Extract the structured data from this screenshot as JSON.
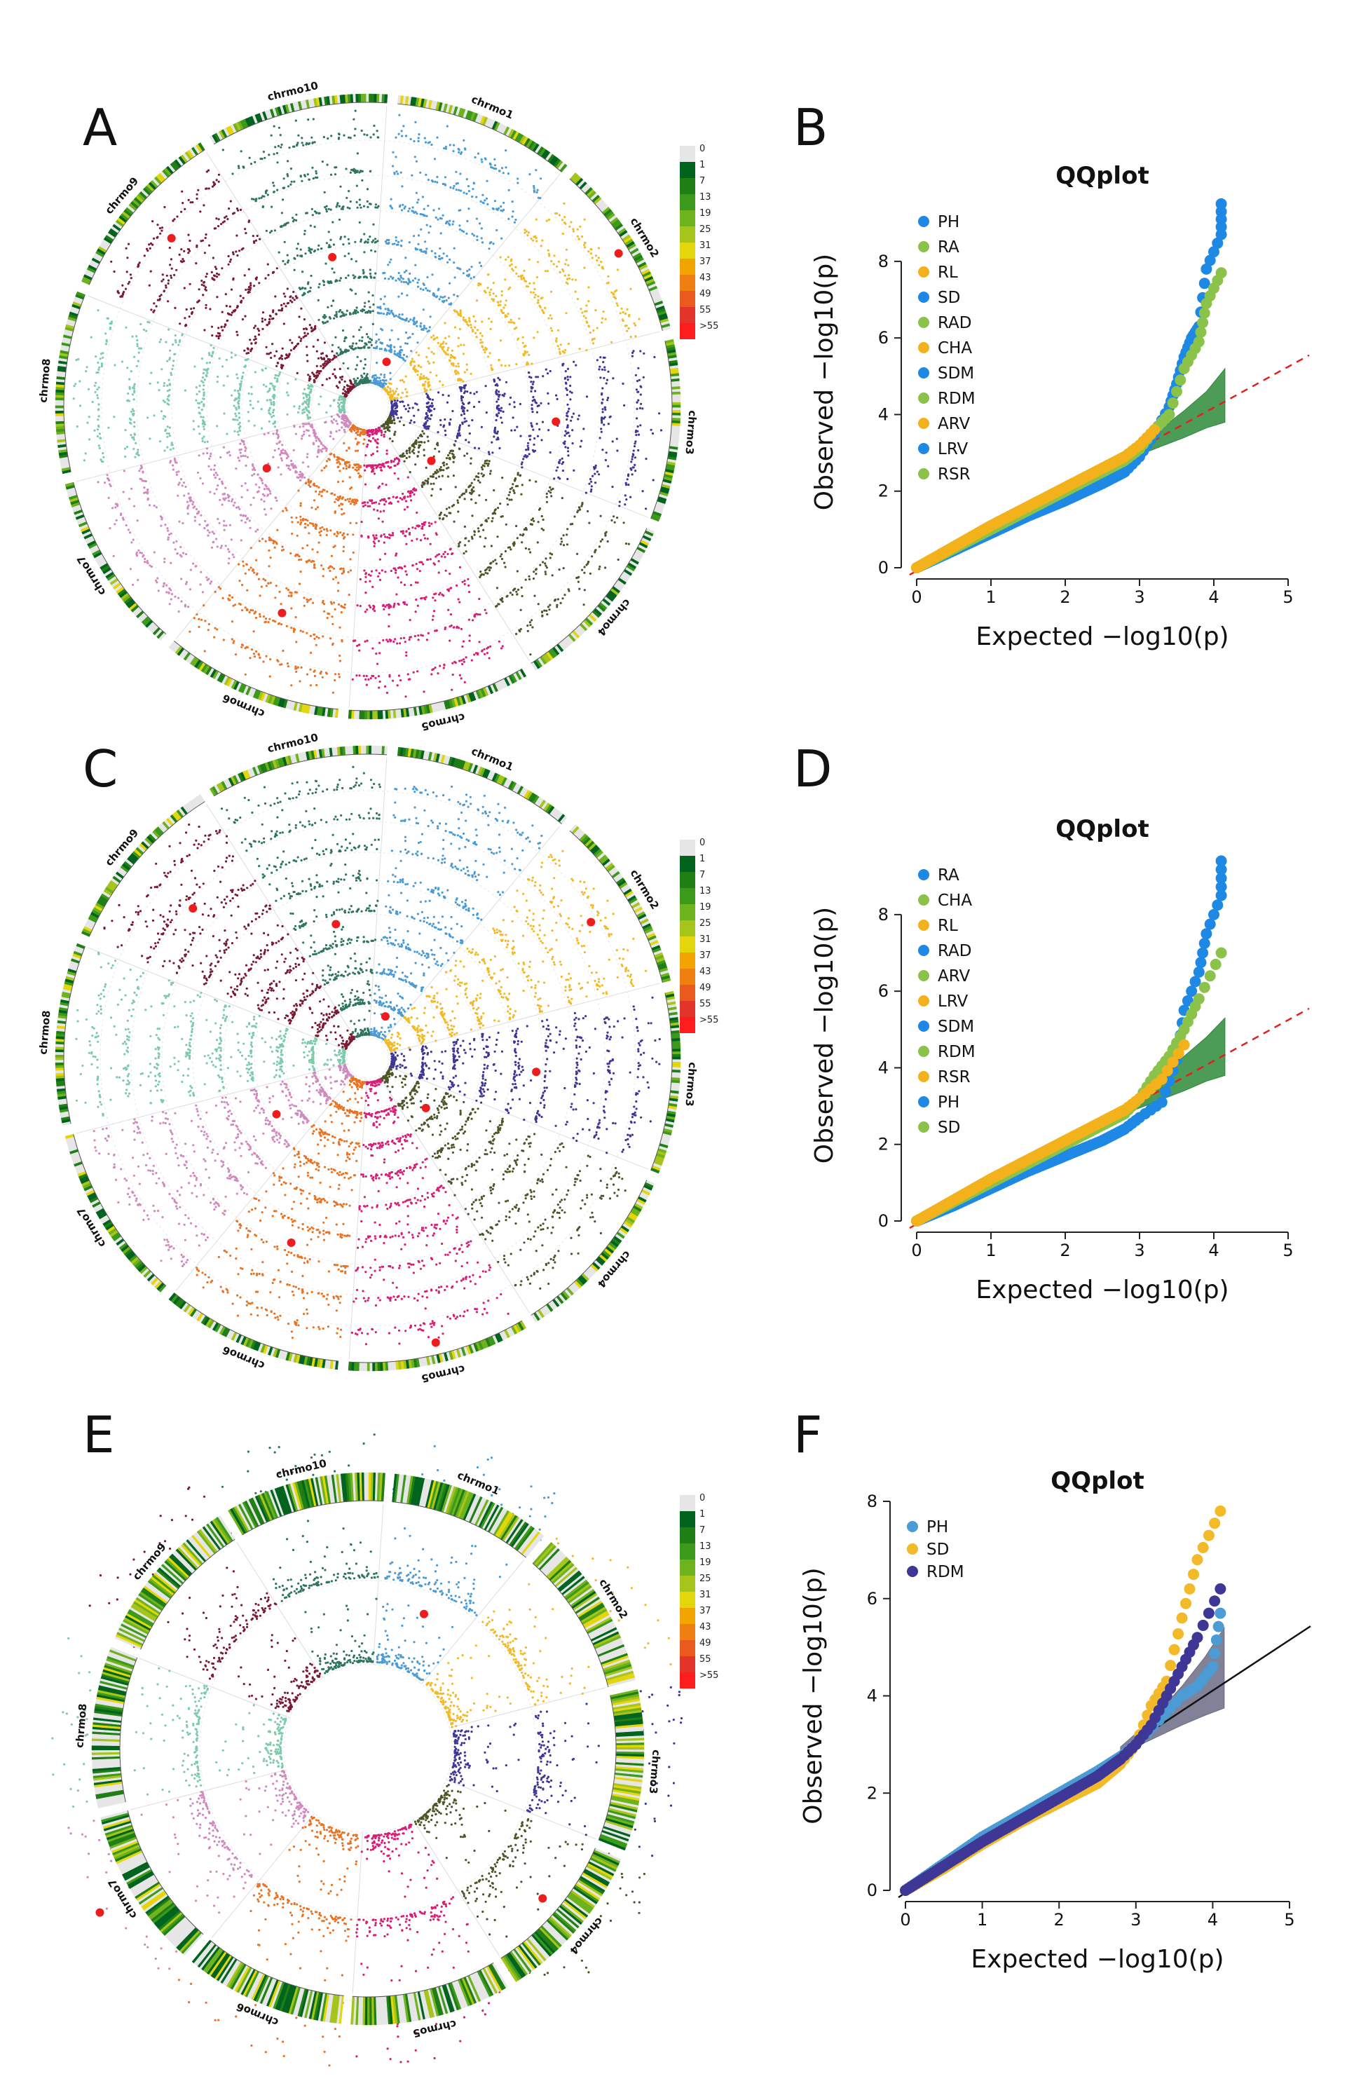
{
  "panels": {
    "A": "A",
    "B": "B",
    "C": "C",
    "D": "D",
    "E": "E",
    "F": "F"
  },
  "colors": {
    "chromosomes": [
      "#4b9bd5",
      "#f2b929",
      "#3e3796",
      "#4d5529",
      "#d81f77",
      "#e87426",
      "#d18ac0",
      "#7ecbab",
      "#7a1b33",
      "#2f7560"
    ],
    "qq_series_BD": [
      "#1e88e5",
      "#8bc34a",
      "#f3b21b"
    ],
    "qq_series_F": [
      "#4b9bd5",
      "#f2b929",
      "#3e3796"
    ],
    "significant_point": "#ee1c1c",
    "null_line_BD": "#e02020",
    "ci_band_BD": "#2d8a3a",
    "ci_band_F": "#6b6b85"
  },
  "circos_legend_labels": [
    "0",
    "1",
    "7",
    "13",
    "19",
    "25",
    "31",
    "37",
    "43",
    "49",
    "55",
    ">55"
  ],
  "circos_legend_colors": [
    "#e6e6e6",
    "#00641e",
    "#1f7f14",
    "#3c9a1a",
    "#6eb21d",
    "#a6c51a",
    "#e3d60c",
    "#f2a400",
    "#f07f12",
    "#ea5a1e",
    "#e4332a",
    "#ff1c1c"
  ],
  "chart_data": [
    {
      "panel": "A",
      "type": "circular-manhattan",
      "chromosome_labels": [
        "chrmo1",
        "chrmo2",
        "chrmo3",
        "chrmo4",
        "chrmo5",
        "chrmo6",
        "chrmo7",
        "chrmo8",
        "chrmo9",
        "chrmo10"
      ],
      "track_count": 8
    },
    {
      "panel": "B",
      "type": "scatter",
      "title": "QQplot",
      "xlabel": "Expected  −log10(p)",
      "ylabel": "Observed  −log10(p)",
      "xlim": [
        0,
        5
      ],
      "ylim": [
        0,
        9.7
      ],
      "xticks": [
        0,
        1,
        2,
        3,
        4,
        5
      ],
      "yticks": [
        0,
        2,
        4,
        6,
        8
      ],
      "legend": [
        "PH",
        "RA",
        "RL",
        "SD",
        "RAD",
        "CHA",
        "SDM",
        "RDM",
        "ARV",
        "LRV",
        "RSR"
      ],
      "legend_position": "top-left",
      "ci_band": {
        "x": [
          2.8,
          3.2,
          3.6,
          3.9,
          4.15
        ],
        "low": [
          2.8,
          3.1,
          3.4,
          3.65,
          3.8
        ],
        "high": [
          2.95,
          3.5,
          4.1,
          4.6,
          5.2
        ]
      },
      "series": [
        {
          "name": "blue",
          "x": [
            0,
            0.5,
            1.0,
            1.5,
            2.0,
            2.5,
            2.8,
            3.0,
            3.2,
            3.4,
            3.5,
            3.6,
            3.7,
            3.8,
            3.9,
            4.1,
            4.1
          ],
          "y": [
            0,
            0.45,
            0.9,
            1.35,
            1.75,
            2.2,
            2.5,
            2.9,
            3.5,
            4.2,
            4.8,
            5.5,
            6.0,
            6.3,
            7.8,
            8.7,
            9.5
          ]
        },
        {
          "name": "green",
          "x": [
            0,
            0.5,
            1.0,
            1.5,
            2.0,
            2.5,
            2.8,
            3.0,
            3.2,
            3.4,
            3.6,
            3.8,
            3.9,
            4.1
          ],
          "y": [
            0,
            0.5,
            1.0,
            1.5,
            2.0,
            2.5,
            2.8,
            3.1,
            3.6,
            4.0,
            5.2,
            5.9,
            6.9,
            7.7
          ]
        },
        {
          "name": "orange",
          "x": [
            0,
            0.5,
            1.0,
            1.5,
            2.0,
            2.5,
            2.8,
            3.0,
            3.2
          ],
          "y": [
            0,
            0.55,
            1.1,
            1.6,
            2.1,
            2.6,
            2.9,
            3.2,
            3.6
          ]
        }
      ]
    },
    {
      "panel": "C",
      "type": "circular-manhattan",
      "chromosome_labels": [
        "chrmo1",
        "chrmo2",
        "chrmo3",
        "chrmo4",
        "chrmo5",
        "chrmo6",
        "chrmo7",
        "chrmo8",
        "chrmo9",
        "chrmo10"
      ],
      "track_count": 9
    },
    {
      "panel": "D",
      "type": "scatter",
      "title": "QQplot",
      "xlabel": "Expected  −log10(p)",
      "ylabel": "Observed  −log10(p)",
      "xlim": [
        0,
        5
      ],
      "ylim": [
        0,
        9.7
      ],
      "xticks": [
        0,
        1,
        2,
        3,
        4,
        5
      ],
      "yticks": [
        0,
        2,
        4,
        6,
        8
      ],
      "legend": [
        "RA",
        "CHA",
        "RL",
        "RAD",
        "ARV",
        "LRV",
        "SDM",
        "RDM",
        "RSR",
        "PH",
        "SD"
      ],
      "legend_position": "top-left",
      "ci_band": {
        "x": [
          2.8,
          3.2,
          3.6,
          3.9,
          4.15
        ],
        "low": [
          2.8,
          3.1,
          3.4,
          3.65,
          3.8
        ],
        "high": [
          2.95,
          3.6,
          4.3,
          4.8,
          5.3
        ]
      },
      "series": [
        {
          "name": "blue",
          "x": [
            0,
            0.5,
            1.0,
            1.5,
            2.0,
            2.5,
            2.8,
            3.0,
            3.3,
            3.5,
            3.6,
            3.8,
            3.9,
            4.1,
            4.1
          ],
          "y": [
            0,
            0.4,
            0.85,
            1.3,
            1.7,
            2.1,
            2.4,
            2.7,
            3.1,
            4.2,
            5.5,
            6.5,
            7.5,
            8.5,
            9.4
          ]
        },
        {
          "name": "green",
          "x": [
            0,
            0.5,
            1.0,
            1.5,
            2.0,
            2.5,
            2.8,
            3.0,
            3.2,
            3.4,
            3.6,
            3.8,
            4.1
          ],
          "y": [
            0,
            0.5,
            1.0,
            1.5,
            2.0,
            2.5,
            2.8,
            3.2,
            3.8,
            4.3,
            5.0,
            5.8,
            7.0
          ]
        },
        {
          "name": "orange",
          "x": [
            0,
            0.5,
            1.0,
            1.5,
            2.0,
            2.5,
            2.8,
            3.0,
            3.3,
            3.6
          ],
          "y": [
            0,
            0.55,
            1.1,
            1.6,
            2.1,
            2.6,
            2.9,
            3.2,
            3.7,
            4.6
          ]
        }
      ]
    },
    {
      "panel": "E",
      "type": "circular-manhattan",
      "chromosome_labels": [
        "chrmo1",
        "chrmo2",
        "chrmo3",
        "chrmo4",
        "chrmo5",
        "chrmo6",
        "chrmo7",
        "chrmo8",
        "chrmo9",
        "chrmo10"
      ],
      "track_count": 3
    },
    {
      "panel": "F",
      "type": "scatter",
      "title": "QQplot",
      "xlabel": "Expected  −log10(p)",
      "ylabel": "Observed  −log10(p)",
      "xlim": [
        0,
        5
      ],
      "ylim": [
        0,
        8
      ],
      "xticks": [
        0,
        1,
        2,
        3,
        4,
        5
      ],
      "yticks": [
        0,
        2,
        4,
        6,
        8
      ],
      "legend": [
        "PH",
        "SD",
        "RDM"
      ],
      "legend_position": "top-left",
      "ci_band": {
        "x": [
          2.8,
          3.2,
          3.6,
          3.9,
          4.15
        ],
        "low": [
          2.8,
          3.1,
          3.4,
          3.6,
          3.75
        ],
        "high": [
          2.95,
          3.5,
          4.2,
          4.8,
          5.4
        ]
      },
      "series": [
        {
          "name": "PH",
          "x": [
            0,
            0.5,
            1.0,
            1.5,
            2.0,
            2.5,
            2.8,
            3.0,
            3.3,
            3.6,
            3.8,
            4.0,
            4.1
          ],
          "y": [
            0,
            0.55,
            1.1,
            1.55,
            2.0,
            2.45,
            2.75,
            3.0,
            3.5,
            4.0,
            4.2,
            4.6,
            5.7
          ]
        },
        {
          "name": "SD",
          "x": [
            0,
            0.5,
            1.0,
            1.5,
            2.0,
            2.5,
            2.8,
            3.0,
            3.2,
            3.4,
            3.6,
            3.8,
            4.1
          ],
          "y": [
            0,
            0.45,
            0.95,
            1.4,
            1.8,
            2.2,
            2.6,
            3.0,
            3.8,
            4.3,
            5.6,
            6.8,
            7.8
          ]
        },
        {
          "name": "RDM",
          "x": [
            0,
            0.5,
            1.0,
            1.5,
            2.0,
            2.5,
            2.8,
            3.0,
            3.2,
            3.4,
            3.6,
            3.8,
            4.1
          ],
          "y": [
            0,
            0.5,
            1.0,
            1.45,
            1.9,
            2.35,
            2.7,
            3.0,
            3.4,
            4.0,
            4.6,
            5.2,
            6.2
          ]
        }
      ]
    }
  ]
}
